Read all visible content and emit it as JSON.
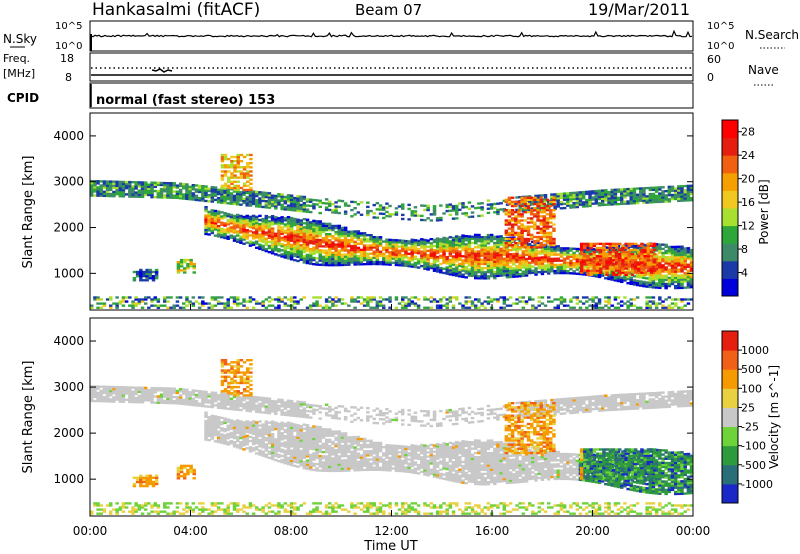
{
  "header": {
    "station": "Hankasalmi (fitACF)",
    "beam": "Beam 07",
    "date": "19/Mar/2011"
  },
  "strip_panels": {
    "nsky": {
      "left_label": "N.Sky",
      "right_label": "N.Search",
      "tick_top": "10^5",
      "tick_bottom": "10^0"
    },
    "freq": {
      "left_label_1": "Freq.",
      "left_label_2": "[MHz]",
      "tick_left_top": "18",
      "tick_left_bottom": "8",
      "tick_right_top": "60",
      "tick_right_bottom": "0",
      "right_label": "Nave"
    },
    "cpid": {
      "label": "CPID",
      "program": "normal (fast stereo) 153"
    }
  },
  "chart_data": [
    {
      "type": "heatmap",
      "title": "",
      "ylabel": "Slant Range [km]",
      "xlabel": "",
      "quantity": "Power [dB]",
      "y_ticks": [
        "1000",
        "2000",
        "3000",
        "4000"
      ],
      "ylim": [
        200,
        4500
      ],
      "xlim": [
        "00:00",
        "24:00"
      ],
      "colorbar": {
        "label": "Power [dB]",
        "ticks": [
          "4",
          "8",
          "12",
          "16",
          "20",
          "24",
          "28"
        ],
        "range": [
          0,
          30
        ],
        "colors": [
          "#0000dc",
          "#1a3aa8",
          "#3c8a68",
          "#2fa63a",
          "#a8e030",
          "#f0c820",
          "#f5a000",
          "#f06010",
          "#e51e10",
          "#ff0000"
        ]
      },
      "echo_bands": [
        {
          "name": "main F-region scatter",
          "start": 4.5,
          "end": 24,
          "center_km": [
            2150,
            1950,
            1800,
            1650,
            1550,
            1450,
            1400,
            1350,
            1350,
            1300,
            1250,
            1200,
            1150,
            1100
          ],
          "level_db": 26
        },
        {
          "name": "upper range scatter",
          "start": 0.0,
          "end": 24,
          "center_km": [
            2850,
            2800,
            2600,
            2400,
            2300,
            2500,
            2650,
            2750
          ],
          "level_db": 8
        },
        {
          "name": "near range clutter",
          "start": 0.0,
          "end": 24,
          "center_km": [
            320,
            320,
            320
          ],
          "level_db": 6
        }
      ]
    },
    {
      "type": "heatmap",
      "title": "",
      "ylabel": "Slant Range [km]",
      "xlabel": "Time UT",
      "quantity": "Velocity [m s^-1]",
      "x_ticks": [
        "00:00",
        "04:00",
        "08:00",
        "12:00",
        "16:00",
        "20:00",
        "00:00"
      ],
      "y_ticks": [
        "1000",
        "2000",
        "3000",
        "4000"
      ],
      "ylim": [
        200,
        4500
      ],
      "colorbar": {
        "label": "Velocity [m s^-1]",
        "ticks": [
          "1000",
          "500",
          "100",
          "25",
          "-25",
          "-100",
          "-500",
          "-1000"
        ],
        "range": [
          -1000,
          1000
        ],
        "colors": [
          "#1a28c8",
          "#2a6e78",
          "#2e9a3e",
          "#6ed23a",
          "#c8c8c8",
          "#e8d040",
          "#f59a00",
          "#f06018",
          "#e61e10"
        ]
      },
      "dominant_value": "ground scatter (grey, |v| < 25)"
    }
  ]
}
